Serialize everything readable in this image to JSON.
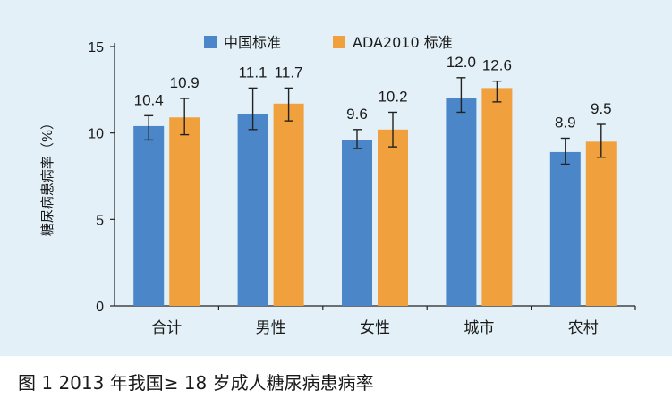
{
  "caption": "图 1  2013 年我国≥ 18 岁成人糖尿病患病率",
  "chart_data": {
    "type": "bar",
    "categories": [
      "合计",
      "男性",
      "女性",
      "城市",
      "农村"
    ],
    "series": [
      {
        "name": "中国标准",
        "color": "#4a86c8",
        "values": [
          10.4,
          11.1,
          9.6,
          12.0,
          8.9
        ],
        "error_low": [
          9.6,
          10.2,
          9.1,
          11.2,
          8.2
        ],
        "error_high": [
          11.0,
          12.6,
          10.2,
          13.2,
          9.7
        ],
        "labels": [
          "10.4",
          "11.1",
          "9.6",
          "12.0",
          "8.9"
        ]
      },
      {
        "name": "ADA2010 标准",
        "color": "#f0a03c",
        "values": [
          10.9,
          11.7,
          10.2,
          12.6,
          9.5
        ],
        "error_low": [
          9.9,
          10.7,
          9.2,
          11.8,
          8.6
        ],
        "error_high": [
          12.0,
          12.6,
          11.2,
          13.0,
          10.5
        ],
        "labels": [
          "10.9",
          "11.7",
          "10.2",
          "12.6",
          "9.5"
        ]
      }
    ],
    "ylabel": "糖尿病患病率（%）",
    "xlabel": "",
    "ylim": [
      0,
      15
    ],
    "yticks": [
      0,
      5,
      10,
      15
    ],
    "legend_position": "top-center",
    "grid": false
  }
}
